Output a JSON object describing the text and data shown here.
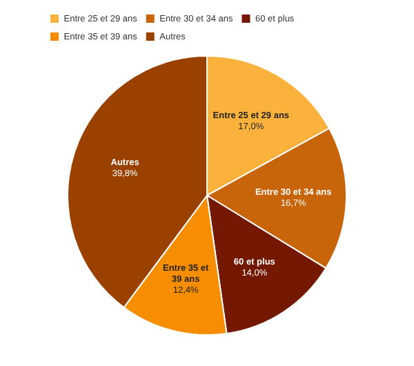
{
  "chart_data": {
    "type": "pie",
    "categories": [
      "Entre 25 et 29 ans",
      "Entre 30 et 34 ans",
      "60 et plus",
      "Entre 35 et 39 ans",
      "Autres"
    ],
    "values": [
      17.0,
      16.7,
      14.0,
      12.4,
      39.8
    ],
    "value_labels": [
      "17,0%",
      "16,7%",
      "14,0%",
      "12,4%",
      "39,8%"
    ],
    "colors": [
      "#fbb23d",
      "#c8650a",
      "#741802",
      "#f78d00",
      "#9b4100"
    ],
    "legend": "top left"
  }
}
